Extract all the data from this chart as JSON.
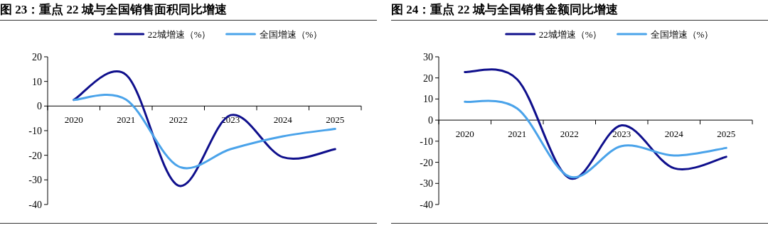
{
  "chart_data": [
    {
      "type": "line",
      "title": "图 23：重点 22 城与全国销售面积同比增速",
      "categories": [
        "2020",
        "2021",
        "2022",
        "2023",
        "2024",
        "2025"
      ],
      "ylim": [
        -40,
        20
      ],
      "yticks": [
        -40,
        -30,
        -20,
        -10,
        0,
        10,
        20
      ],
      "legend": "top",
      "grid": false,
      "marker": "none",
      "line_style": "solid",
      "series": [
        {
          "name": "22城增速（%）",
          "color": "#0f0f8c",
          "values": [
            2.5,
            12.7,
            -32.3,
            -3.7,
            -20.8,
            -17.5
          ]
        },
        {
          "name": "全国增速（%）",
          "color": "#4aa3ea",
          "values": [
            2.5,
            2.6,
            -24.5,
            -17.5,
            -12.3,
            -9.3
          ]
        }
      ]
    },
    {
      "type": "line",
      "title": "图 24：重点 22 城与全国销售金额同比增速",
      "categories": [
        "2020",
        "2021",
        "2022",
        "2023",
        "2024",
        "2025"
      ],
      "ylim": [
        -40,
        30
      ],
      "yticks": [
        -40,
        -30,
        -20,
        -10,
        0,
        10,
        20,
        30
      ],
      "legend": "top",
      "grid": false,
      "marker": "none",
      "line_style": "solid",
      "series": [
        {
          "name": "22城增速（%）",
          "color": "#0f0f8c",
          "values": [
            22.8,
            19.3,
            -27.5,
            -2.5,
            -22.8,
            -17.4
          ]
        },
        {
          "name": "全国增速（%）",
          "color": "#4aa3ea",
          "values": [
            8.7,
            5.5,
            -26.8,
            -12.3,
            -16.8,
            -13.2
          ]
        }
      ]
    }
  ]
}
